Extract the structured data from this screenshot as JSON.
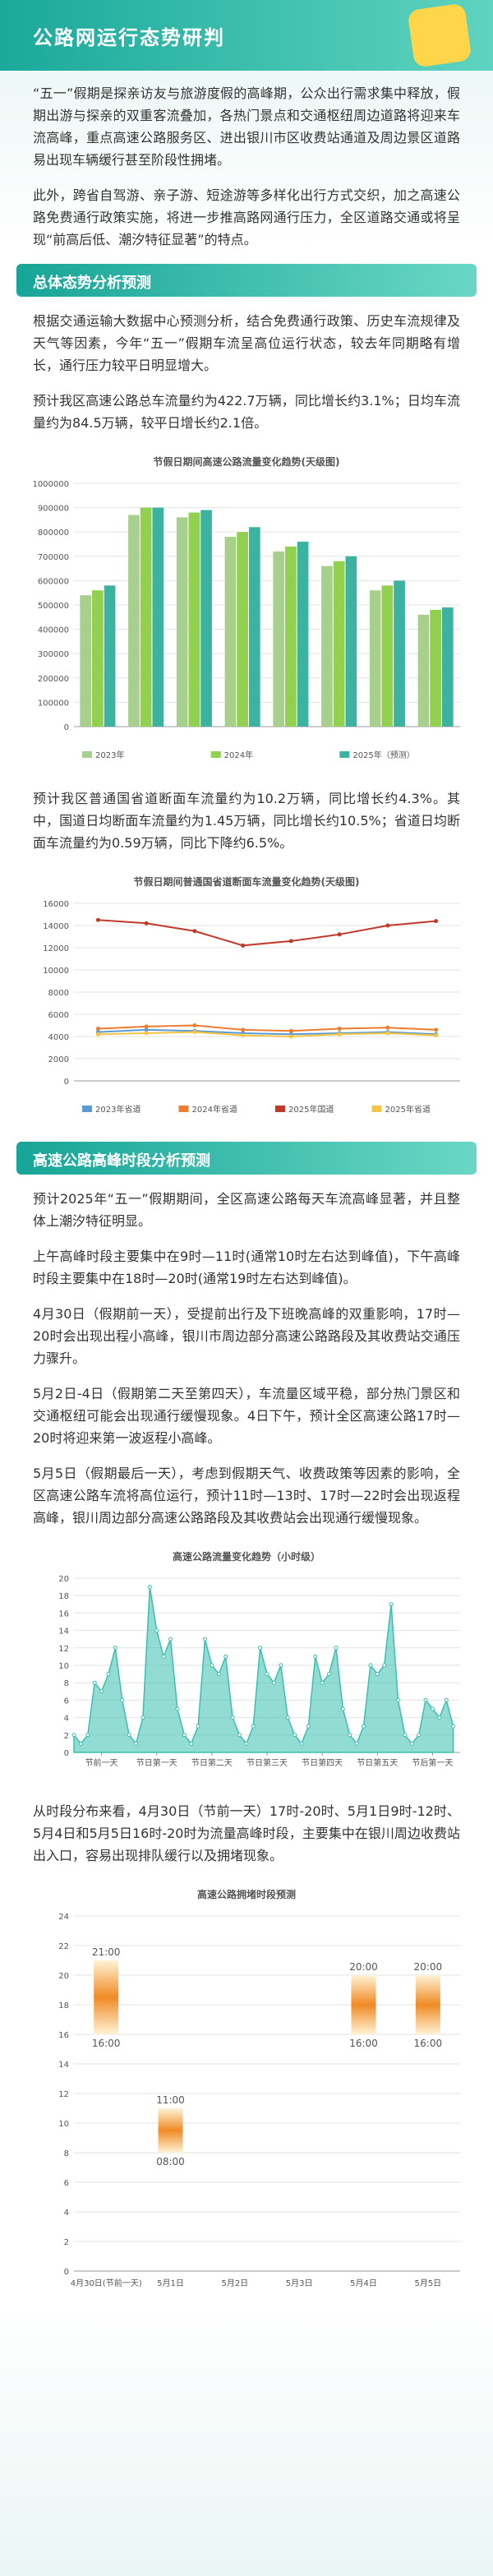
{
  "header": {
    "title": "公路网运行态势研判"
  },
  "intro": [
    "“五一”假期是探亲访友与旅游度假的高峰期，公众出行需求集中释放，假期出游与探亲的双重客流叠加，各热门景点和交通枢纽周边道路将迎来车流高峰，重点高速公路服务区、进出银川市区收费站通道及周边景区道路易出现车辆缓行甚至阶段性拥堵。",
    "此外，跨省自驾游、亲子游、短途游等多样化出行方式交织，加之高速公路免费通行政策实施，将进一步推高路网通行压力，全区道路交通或将呈现“前高后低、潮汐特征显著”的特点。"
  ],
  "section1": {
    "heading": "总体态势分析预测",
    "paragraphs": [
      "根据交通运输大数据中心预测分析，结合免费通行政策、历史车流规律及天气等因素，今年“五一”假期车流呈高位运行状态，较去年同期略有增长，通行压力较平日明显增大。",
      "预计我区高速公路总车流量约为422.7万辆，同比增长约3.1%；日均车流量约为84.5万辆，较平日增长约2.1倍。"
    ],
    "after_chart": "预计我区普通国省道断面车流量约为10.2万辆，同比增长约4.3%。其中，国道日均断面车流量约为1.45万辆，同比增长约10.5%；省道日均断面车流量约为0.59万辆，同比下降约6.5%。"
  },
  "section2": {
    "heading": "高速公路高峰时段分析预测",
    "paragraphs": [
      "预计2025年“五一”假期期间，全区高速公路每天车流高峰显著，并且整体上潮汐特征明显。",
      "上午高峰时段主要集中在9时—11时(通常10时左右达到峰值)，下午高峰时段主要集中在18时—20时(通常19时左右达到峰值)。",
      "4月30日（假期前一天），受提前出行及下班晚高峰的双重影响，17时—20时会出现出程小高峰，银川市周边部分高速公路路段及其收费站交通压力骤升。",
      "5月2日-4日（假期第二天至第四天），车流量区域平稳，部分热门景区和交通枢纽可能会出现通行缓慢现象。4日下午，预计全区高速公路17时—20时将迎来第一波返程小高峰。",
      "5月5日（假期最后一天），考虑到假期天气、收费政策等因素的影响，全区高速公路车流将高位运行，预计11时—13时、17时—22时会出现返程高峰，银川周边部分高速公路路段及其收费站会出现通行缓慢现象。"
    ],
    "after_chart": "从时段分布来看，4月30日（节前一天）17时-20时、5月1日9时-12时、5月4日和5月5日16时-20时为流量高峰时段，主要集中在银川周边收费站出入口，容易出现排队缓行以及拥堵现象。"
  },
  "charts": [
    {
      "type": "bar",
      "title": "节假日期间高速公路流量变化趋势(天级图)",
      "categories": [
        null,
        null,
        null,
        null,
        null,
        null,
        null,
        null
      ],
      "series": [
        {
          "name": "2023年",
          "color": "#a8d08d",
          "values": [
            540000,
            870000,
            860000,
            780000,
            720000,
            660000,
            560000,
            460000
          ]
        },
        {
          "name": "2024年",
          "color": "#92d050",
          "values": [
            560000,
            900000,
            880000,
            800000,
            740000,
            680000,
            580000,
            480000
          ]
        },
        {
          "name": "2025年（预测）",
          "color": "#3bb3a0",
          "values": [
            580000,
            900000,
            890000,
            820000,
            760000,
            700000,
            600000,
            490000
          ]
        }
      ],
      "ylim": [
        0,
        1000000
      ],
      "yticks": [
        0,
        100000,
        200000,
        300000,
        400000,
        500000,
        600000,
        700000,
        800000,
        900000,
        1000000
      ],
      "grid": true
    },
    {
      "type": "line",
      "title": "节假日期间普通国省道断面车流量变化趋势(天级图)",
      "categories": [
        null,
        null,
        null,
        null,
        null,
        null,
        null,
        null
      ],
      "series": [
        {
          "name": "2023年省道",
          "color": "#5b9bd5",
          "values": [
            4400,
            4600,
            4500,
            4300,
            4200,
            4300,
            4400,
            4200
          ]
        },
        {
          "name": "2024年省道",
          "color": "#ed7d31",
          "values": [
            4700,
            4900,
            5000,
            4600,
            4500,
            4700,
            4800,
            4600
          ]
        },
        {
          "name": "2025年国道",
          "color": "#c0392b",
          "values": [
            14500,
            14200,
            13500,
            12200,
            12600,
            13200,
            14000,
            14400
          ]
        },
        {
          "name": "2025年省道",
          "color": "#f4c542",
          "values": [
            4200,
            4300,
            4400,
            4100,
            4000,
            4200,
            4300,
            4100
          ]
        }
      ],
      "ylim": [
        0,
        16000
      ],
      "yticks": [
        0,
        2000,
        4000,
        6000,
        8000,
        10000,
        12000,
        14000,
        16000
      ],
      "grid": true
    },
    {
      "type": "area",
      "title": "高速公路流量变化趋势（小时级）",
      "color": "#3bbfb0",
      "x": [
        0,
        3,
        6,
        9,
        12,
        15,
        18,
        21,
        24,
        27,
        30,
        33,
        36,
        39,
        42,
        45,
        48,
        51,
        54,
        57,
        60,
        63,
        66,
        69,
        72,
        75,
        78,
        81,
        84,
        87,
        90,
        93,
        96,
        99,
        102,
        105,
        108,
        111,
        114,
        117,
        120,
        123,
        126,
        129,
        132,
        135,
        138,
        141,
        144,
        147,
        150,
        153,
        156,
        159,
        162,
        165
      ],
      "values": [
        2,
        1,
        2,
        8,
        7,
        9,
        12,
        6,
        2,
        1,
        4,
        19,
        14,
        11,
        13,
        5,
        2,
        1,
        3,
        13,
        10,
        9,
        11,
        4,
        2,
        1,
        3,
        12,
        9,
        8,
        10,
        4,
        2,
        1,
        3,
        11,
        8,
        9,
        12,
        5,
        2,
        1,
        3,
        10,
        9,
        10,
        17,
        6,
        2,
        1,
        2,
        6,
        5,
        4,
        6,
        3
      ],
      "xlim": [
        0,
        168
      ],
      "xticks": [
        {
          "value": 12,
          "label": "节前一天"
        },
        {
          "value": 36,
          "label": "节日第一天"
        },
        {
          "value": 60,
          "label": "节日第二天"
        },
        {
          "value": 84,
          "label": "节日第三天"
        },
        {
          "value": 108,
          "label": "节日第四天"
        },
        {
          "value": 132,
          "label": "节日第五天"
        },
        {
          "value": 156,
          "label": "节后第一天"
        }
      ],
      "ylim": [
        0,
        20
      ],
      "yticks": [
        0,
        2,
        4,
        6,
        8,
        10,
        12,
        14,
        16,
        18,
        20
      ],
      "grid": true
    },
    {
      "type": "range_bar",
      "title": "高速公路拥堵时段预测",
      "color": "#f08a24",
      "categories": [
        "4月30日(节前一天)",
        "5月1日",
        "5月2日",
        "5月3日",
        "5月4日",
        "5月5日"
      ],
      "values": [
        [
          16,
          21
        ],
        [
          8,
          11
        ],
        null,
        null,
        [
          16,
          20
        ],
        [
          16,
          20
        ]
      ],
      "value_labels": [
        [
          "16:00",
          "21:00"
        ],
        [
          "08:00",
          "11:00"
        ],
        null,
        null,
        [
          "16:00",
          "20:00"
        ],
        [
          "16:00",
          "20:00"
        ]
      ],
      "ylim": [
        0,
        24
      ],
      "yticks": [
        0,
        2,
        4,
        6,
        8,
        10,
        12,
        14,
        16,
        18,
        20,
        22,
        24
      ],
      "grid": true
    }
  ]
}
